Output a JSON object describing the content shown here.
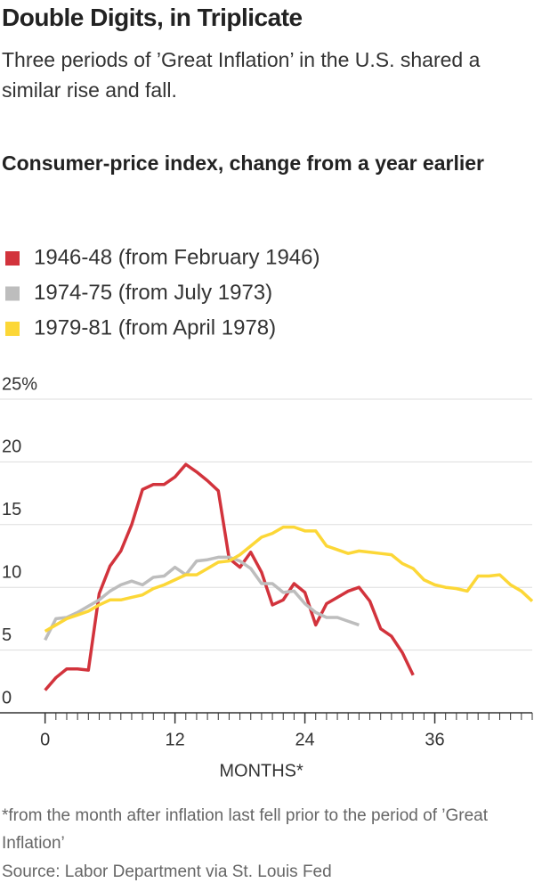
{
  "chart_data": {
    "type": "line",
    "title": "Double Digits, in Triplicate",
    "subtitle": "Three periods of ’Great Inflation’ in the U.S. shared a similar rise and fall.",
    "chart_title": "Consumer-price index, change from a year earlier",
    "xlabel": "MONTHS*",
    "footnote": "*from the month after inflation last fell prior to the period of ’Great Inflation’",
    "source": "Source: Labor Department via St. Louis Fed",
    "x": [
      0,
      1,
      2,
      3,
      4,
      5,
      6,
      7,
      8,
      9,
      10,
      11,
      12,
      13,
      14,
      15,
      16,
      17,
      18,
      19,
      20,
      21,
      22,
      23,
      24,
      25,
      26,
      27,
      28,
      29,
      30,
      31,
      32,
      33,
      34,
      35,
      36,
      37,
      38,
      39,
      40,
      41,
      42,
      43,
      44,
      45
    ],
    "xlim": [
      -4,
      45
    ],
    "xticks": [
      0,
      12,
      24,
      36
    ],
    "ylim": [
      0,
      25
    ],
    "yticks": [
      0,
      5,
      10,
      15,
      20,
      {
        "value": 25,
        "label": "25%"
      }
    ],
    "grid": true,
    "series": [
      {
        "name": "1946-48 (from February 1946)",
        "color": "#d2333c",
        "values": [
          1.8,
          2.8,
          3.5,
          3.5,
          3.4,
          9.5,
          11.7,
          12.9,
          15.0,
          17.8,
          18.2,
          18.2,
          18.8,
          19.8,
          19.2,
          18.5,
          17.7,
          12.3,
          11.6,
          12.8,
          11.2,
          8.6,
          9.0,
          10.3,
          9.6,
          7.0,
          8.7,
          9.2,
          9.7,
          10.0,
          8.9,
          6.7,
          6.1,
          4.8,
          3.0,
          null,
          null,
          null,
          null,
          null,
          null,
          null,
          null,
          null,
          null,
          null
        ]
      },
      {
        "name": "1974-75 (from July 1973)",
        "color": "#bdbdbd",
        "values": [
          5.8,
          7.5,
          7.6,
          8.0,
          8.5,
          9.0,
          9.7,
          10.2,
          10.5,
          10.2,
          10.8,
          10.9,
          11.6,
          11.0,
          12.1,
          12.2,
          12.4,
          12.4,
          12.1,
          11.5,
          10.3,
          10.3,
          9.6,
          9.7,
          8.7,
          8.0,
          7.6,
          7.6,
          7.3,
          7.0,
          null,
          null,
          null,
          null,
          null,
          null,
          null,
          null,
          null,
          null,
          null,
          null,
          null,
          null,
          null,
          null
        ]
      },
      {
        "name": "1979-81 (from April 1978)",
        "color": "#fcd737",
        "values": [
          6.5,
          7.0,
          7.5,
          7.8,
          8.1,
          8.6,
          9.0,
          9.0,
          9.2,
          9.4,
          9.9,
          10.2,
          10.6,
          11.0,
          11.0,
          11.5,
          12.0,
          12.1,
          12.6,
          13.3,
          14.0,
          14.3,
          14.8,
          14.8,
          14.5,
          14.5,
          13.3,
          13.0,
          12.7,
          12.9,
          12.8,
          12.7,
          12.6,
          11.9,
          11.5,
          10.6,
          10.2,
          10.0,
          9.9,
          9.7,
          10.9,
          10.9,
          11.0,
          10.2,
          9.7,
          8.9
        ]
      }
    ]
  }
}
